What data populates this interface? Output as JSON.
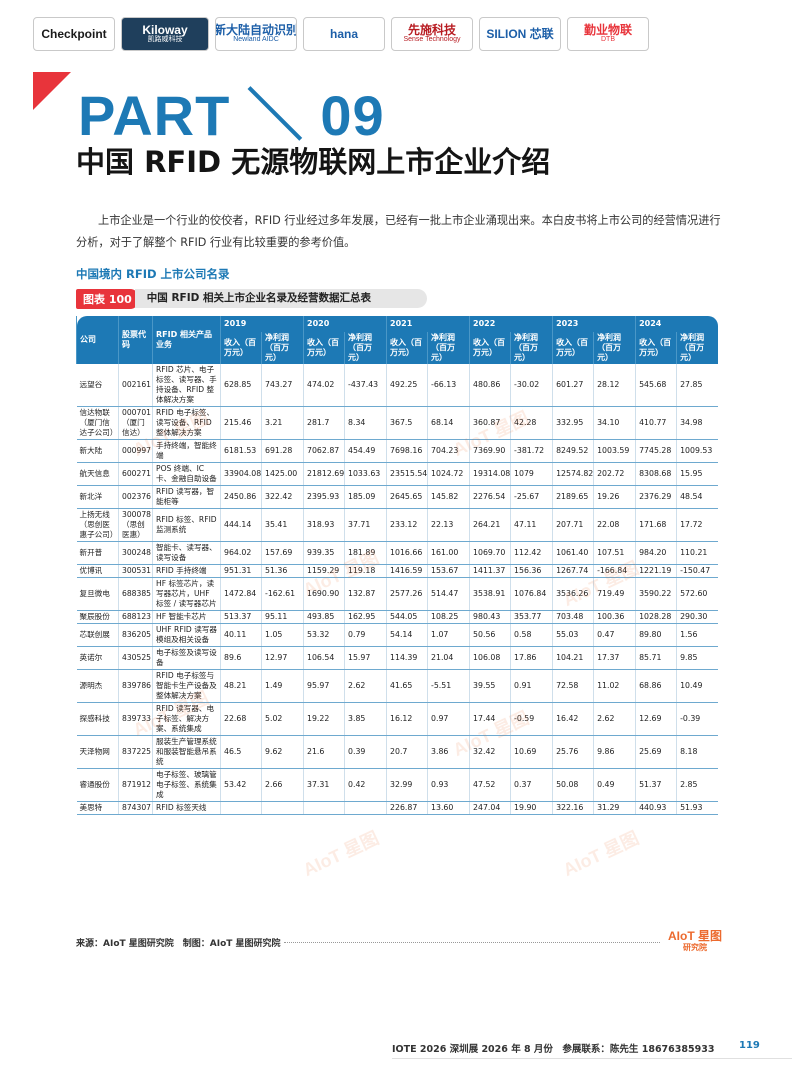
{
  "logos": [
    {
      "name": "checkpoint-logo",
      "text": "Checkpoint",
      "sub": "",
      "color": "#1a1a1a",
      "bg": "#ffffff",
      "width": 82
    },
    {
      "name": "kiloway-logo",
      "text": "Kiloway",
      "sub": "凯路威科技",
      "color": "#ffffff",
      "bg": "#1f3f5c",
      "width": 88
    },
    {
      "name": "newland-logo",
      "text": "新大陆自动识别",
      "sub": "Newland AIDC",
      "color": "#1d5fa8",
      "bg": "#ffffff",
      "width": 82
    },
    {
      "name": "hana-logo",
      "text": "hana",
      "sub": "",
      "color": "#1d5fa8",
      "bg": "#ffffff",
      "width": 82
    },
    {
      "name": "sense-logo",
      "text": "先施科技",
      "sub": "Sense Technology",
      "color": "#b81c22",
      "bg": "#ffffff",
      "width": 82
    },
    {
      "name": "silion-logo",
      "text": "SILION 芯联",
      "sub": "",
      "color": "#1d5fa8",
      "bg": "#ffffff",
      "width": 82
    },
    {
      "name": "dtb-logo",
      "text": "勤业物联",
      "sub": "DTB",
      "color": "#e8343b",
      "bg": "#ffffff",
      "width": 82
    }
  ],
  "header": {
    "part": "PART ＼ 09",
    "title": "中国 RFID 无源物联网上市企业介绍"
  },
  "intro": "上市企业是一个行业的佼佼者，RFID 行业经过多年发展，已经有一批上市企业涌现出来。本白皮书将上市公司的经营情况进行分析，对于了解整个 RFID 行业有比较重要的参考价值。",
  "section_heading": "中国境内 RFID 上市公司名录",
  "figure": {
    "tag": "图表 100",
    "caption": "中国 RFID 相关上市企业名录及经营数据汇总表"
  },
  "table": {
    "col_company": "公司",
    "col_code": "股票代码",
    "col_products": "RFID 相关产品业务",
    "years": [
      "2019",
      "2020",
      "2021",
      "2022",
      "2023",
      "2024"
    ],
    "sub_revenue": "收入（百万元）",
    "sub_profit": "净利润（百万元）",
    "rows": [
      {
        "company": "远望谷",
        "code": "002161",
        "products": "RFID 芯片、电子标签、读写器、手持设备、RFID 整体解决方案",
        "vals": [
          "628.85",
          "743.27",
          "474.02",
          "-437.43",
          "492.25",
          "-66.13",
          "480.86",
          "-30.02",
          "601.27",
          "28.12",
          "545.68",
          "27.85"
        ]
      },
      {
        "company": "信达物联（厦门信达子公司）",
        "code": "000701（厦门信达）",
        "products": "RFID 电子标签、读写设备、RFID 整体解决方案",
        "vals": [
          "215.46",
          "3.21",
          "281.7",
          "8.34",
          "367.5",
          "68.14",
          "360.87",
          "42.28",
          "332.95",
          "34.10",
          "410.77",
          "34.98"
        ]
      },
      {
        "company": "新大陆",
        "code": "000997",
        "products": "手持终端，智能终端",
        "vals": [
          "6181.53",
          "691.28",
          "7062.87",
          "454.49",
          "7698.16",
          "704.23",
          "7369.90",
          "-381.72",
          "8249.52",
          "1003.59",
          "7745.28",
          "1009.53"
        ]
      },
      {
        "company": "航天信息",
        "code": "600271",
        "products": "POS 终端、IC 卡、金融自助设备",
        "vals": [
          "33904.08",
          "1425.00",
          "21812.69",
          "1033.63",
          "23515.54",
          "1024.72",
          "19314.08",
          "1079",
          "12574.82",
          "202.72",
          "8308.68",
          "15.95"
        ]
      },
      {
        "company": "新北洋",
        "code": "002376",
        "products": "RFID 读写器，智能柜等",
        "vals": [
          "2450.86",
          "322.42",
          "2395.93",
          "185.09",
          "2645.65",
          "145.82",
          "2276.54",
          "-25.67",
          "2189.65",
          "19.26",
          "2376.29",
          "48.54"
        ]
      },
      {
        "company": "上扬无线（思创医惠子公司）",
        "code": "300078（思创医惠）",
        "products": "RFID 标签、RFID 监测系统",
        "vals": [
          "444.14",
          "35.41",
          "318.93",
          "37.71",
          "233.12",
          "22.13",
          "264.21",
          "47.11",
          "207.71",
          "22.08",
          "171.68",
          "17.72"
        ]
      },
      {
        "company": "新开普",
        "code": "300248",
        "products": "智能卡、读写器、读写设备",
        "vals": [
          "964.02",
          "157.69",
          "939.35",
          "181.89",
          "1016.66",
          "161.00",
          "1069.70",
          "112.42",
          "1061.40",
          "107.51",
          "984.20",
          "110.21"
        ]
      },
      {
        "company": "优博讯",
        "code": "300531",
        "products": "RFID 手持终端",
        "vals": [
          "951.31",
          "51.36",
          "1159.29",
          "119.18",
          "1416.59",
          "153.67",
          "1411.37",
          "156.36",
          "1267.74",
          "-166.84",
          "1221.19",
          "-150.47"
        ]
      },
      {
        "company": "复旦微电",
        "code": "688385",
        "products": "HF 标签芯片，读写器芯片，UHF 标签 / 读写器芯片",
        "vals": [
          "1472.84",
          "-162.61",
          "1690.90",
          "132.87",
          "2577.26",
          "514.47",
          "3538.91",
          "1076.84",
          "3536.26",
          "719.49",
          "3590.22",
          "572.60"
        ]
      },
      {
        "company": "聚辰股份",
        "code": "688123",
        "products": "HF 智能卡芯片",
        "vals": [
          "513.37",
          "95.11",
          "493.85",
          "162.95",
          "544.05",
          "108.25",
          "980.43",
          "353.77",
          "703.48",
          "100.36",
          "1028.28",
          "290.30"
        ]
      },
      {
        "company": "芯联创展",
        "code": "836205",
        "products": "UHF RFID 读写器模组及相关设备",
        "vals": [
          "40.11",
          "1.05",
          "53.32",
          "0.79",
          "54.14",
          "1.07",
          "50.56",
          "0.58",
          "55.03",
          "0.47",
          "89.80",
          "1.56"
        ]
      },
      {
        "company": "英诺尔",
        "code": "430525",
        "products": "电子标签及读写设备",
        "vals": [
          "89.6",
          "12.97",
          "106.54",
          "15.97",
          "114.39",
          "21.04",
          "106.08",
          "17.86",
          "104.21",
          "17.37",
          "85.71",
          "9.85"
        ]
      },
      {
        "company": "源明杰",
        "code": "839786",
        "products": "RFID 电子标签与智能卡生产设备及整体解决方案",
        "vals": [
          "48.21",
          "1.49",
          "95.97",
          "2.62",
          "41.65",
          "-5.51",
          "39.55",
          "0.91",
          "72.58",
          "11.02",
          "68.86",
          "10.49"
        ]
      },
      {
        "company": "探感科技",
        "code": "839733",
        "products": "RFID 读写器、电子标签、解决方案、系统集成",
        "vals": [
          "22.68",
          "5.02",
          "19.22",
          "3.85",
          "16.12",
          "0.97",
          "17.44",
          "-0.59",
          "16.42",
          "2.62",
          "12.69",
          "-0.39"
        ]
      },
      {
        "company": "天泽物网",
        "code": "837225",
        "products": "服装生产管理系统和服装智能悬吊系统",
        "vals": [
          "46.5",
          "9.62",
          "21.6",
          "0.39",
          "20.7",
          "3.86",
          "32.42",
          "10.69",
          "25.76",
          "9.86",
          "25.69",
          "8.18"
        ]
      },
      {
        "company": "睿通股份",
        "code": "871912",
        "products": "电子标签、玻璃管电子标签、系统集成",
        "vals": [
          "53.42",
          "2.66",
          "37.31",
          "0.42",
          "32.99",
          "0.93",
          "47.52",
          "0.37",
          "50.08",
          "0.49",
          "51.37",
          "2.85"
        ]
      },
      {
        "company": "美思特",
        "code": "874307",
        "products": "RFID 标签天线",
        "vals": [
          "",
          "",
          "",
          "",
          "226.87",
          "13.60",
          "247.04",
          "19.90",
          "322.16",
          "31.29",
          "440.93",
          "51.93"
        ]
      }
    ]
  },
  "source": "来源：AIoT 星图研究院　制图：AIoT 星图研究院",
  "brand": {
    "name": "AIoT 星图",
    "sub": "研究院"
  },
  "watermark": "AIoT 星图",
  "footer": "IOTE 2026 深圳展 2026 年 8 月份　参展联系：陈先生 18676385933",
  "page_number": "119",
  "colors": {
    "accent": "#1d79b5",
    "red": "#e8343b",
    "brand_orange": "#ec6a2e"
  }
}
